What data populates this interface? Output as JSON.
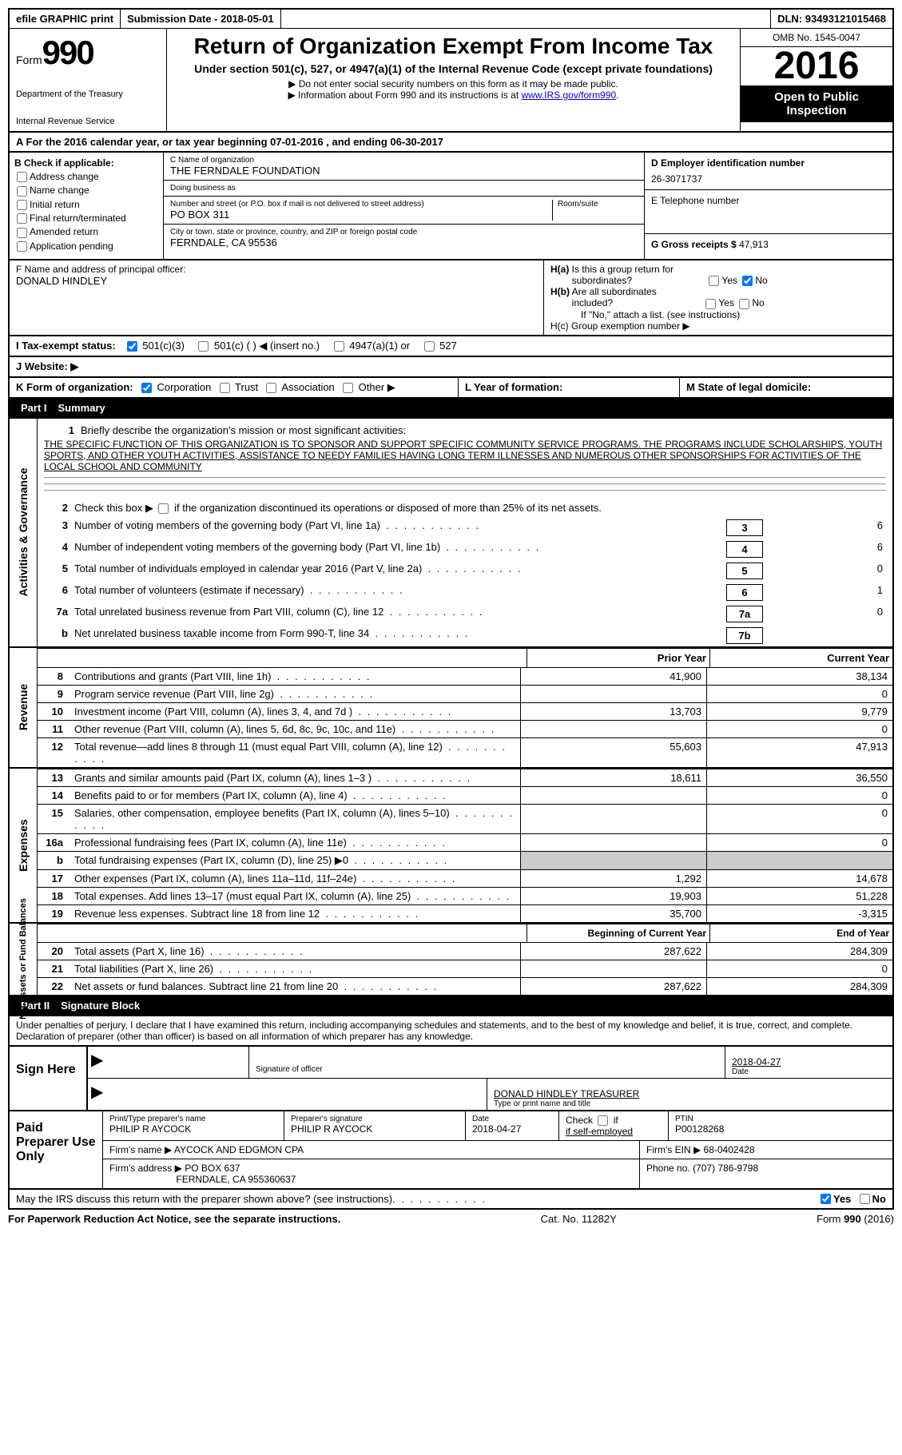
{
  "top": {
    "efile": "efile GRAPHIC print",
    "subdate_label": "Submission Date - ",
    "subdate": "2018-05-01",
    "dln_label": "DLN: ",
    "dln": "93493121015468"
  },
  "header": {
    "form_prefix": "Form",
    "form_no": "990",
    "dept1": "Department of the Treasury",
    "dept2": "Internal Revenue Service",
    "title": "Return of Organization Exempt From Income Tax",
    "sub": "Under section 501(c), 527, or 4947(a)(1) of the Internal Revenue Code (except private foundations)",
    "note1": "▶ Do not enter social security numbers on this form as it may be made public.",
    "note2": "▶ Information about Form 990 and its instructions is at ",
    "link": "www.IRS.gov/form990",
    "omb": "OMB No. 1545-0047",
    "year": "2016",
    "open": "Open to Public Inspection"
  },
  "a": {
    "text": "A  For the 2016 calendar year, or tax year beginning 07-01-2016   , and ending 06-30-2017"
  },
  "b": {
    "label": "B Check if applicable:",
    "items": [
      "Address change",
      "Name change",
      "Initial return",
      "Final return/terminated",
      "Amended return",
      "Application pending"
    ]
  },
  "c": {
    "name_label": "C Name of organization",
    "name": "THE FERNDALE FOUNDATION",
    "dba_label": "Doing business as",
    "dba": "",
    "street_label": "Number and street (or P.O. box if mail is not delivered to street address)",
    "room_label": "Room/suite",
    "street": "PO BOX 311",
    "city_label": "City or town, state or province, country, and ZIP or foreign postal code",
    "city": "FERNDALE, CA  95536"
  },
  "d": {
    "label": "D Employer identification number",
    "value": "26-3071737"
  },
  "e": {
    "label": "E Telephone number",
    "value": ""
  },
  "g": {
    "label": "G Gross receipts $ ",
    "value": "47,913"
  },
  "f": {
    "label": "F  Name and address of principal officer:",
    "name": "DONALD HINDLEY"
  },
  "h": {
    "ha": "H(a)  Is this a group return for subordinates?",
    "ha_no": true,
    "hb": "H(b)  Are all subordinates included?",
    "hb_note": "If \"No,\" attach a list. (see instructions)",
    "hc": "H(c)  Group exemption number ▶"
  },
  "i": {
    "label": "I  Tax-exempt status:",
    "opts": [
      "501(c)(3)",
      "501(c) (   ) ◀ (insert no.)",
      "4947(a)(1) or",
      "527"
    ]
  },
  "j": {
    "label": "J  Website: ▶"
  },
  "k": {
    "label": "K Form of organization:",
    "opts": [
      "Corporation",
      "Trust",
      "Association",
      "Other ▶"
    ]
  },
  "l": {
    "label": "L Year of formation:"
  },
  "m": {
    "label": "M State of legal domicile:"
  },
  "part1": {
    "header": "Part I",
    "title": "Summary"
  },
  "gov": {
    "side": "Activities & Governance",
    "l1": "Briefly describe the organization's mission or most significant activities:",
    "mission": "THE SPECIFIC FUNCTION OF THIS ORGANIZATION IS TO SPONSOR AND SUPPORT SPECIFIC COMMUNITY SERVICE PROGRAMS. THE PROGRAMS INCLUDE SCHOLARSHIPS, YOUTH SPORTS, AND OTHER YOUTH ACTIVITIES, ASSISTANCE TO NEEDY FAMILIES HAVING LONG TERM ILLNESSES AND NUMEROUS OTHER SPONSORSHIPS FOR ACTIVITIES OF THE LOCAL SCHOOL AND COMMUNITY",
    "l2": "Check this box ▶      if the organization discontinued its operations or disposed of more than 25% of its net assets.",
    "lines": [
      {
        "n": "3",
        "d": "Number of voting members of the governing body (Part VI, line 1a)",
        "box": "3",
        "v": "6"
      },
      {
        "n": "4",
        "d": "Number of independent voting members of the governing body (Part VI, line 1b)",
        "box": "4",
        "v": "6"
      },
      {
        "n": "5",
        "d": "Total number of individuals employed in calendar year 2016 (Part V, line 2a)",
        "box": "5",
        "v": "0"
      },
      {
        "n": "6",
        "d": "Total number of volunteers (estimate if necessary)",
        "box": "6",
        "v": "1"
      },
      {
        "n": "7a",
        "d": "Total unrelated business revenue from Part VIII, column (C), line 12",
        "box": "7a",
        "v": "0"
      },
      {
        "n": "b",
        "d": "Net unrelated business taxable income from Form 990-T, line 34",
        "box": "7b",
        "v": ""
      }
    ]
  },
  "cols": {
    "py": "Prior Year",
    "cy": "Current Year"
  },
  "rev": {
    "side": "Revenue",
    "rows": [
      {
        "n": "8",
        "d": "Contributions and grants (Part VIII, line 1h)",
        "p": "41,900",
        "c": "38,134"
      },
      {
        "n": "9",
        "d": "Program service revenue (Part VIII, line 2g)",
        "p": "",
        "c": "0"
      },
      {
        "n": "10",
        "d": "Investment income (Part VIII, column (A), lines 3, 4, and 7d )",
        "p": "13,703",
        "c": "9,779"
      },
      {
        "n": "11",
        "d": "Other revenue (Part VIII, column (A), lines 5, 6d, 8c, 9c, 10c, and 11e)",
        "p": "",
        "c": "0"
      },
      {
        "n": "12",
        "d": "Total revenue—add lines 8 through 11 (must equal Part VIII, column (A), line 12)",
        "p": "55,603",
        "c": "47,913"
      }
    ]
  },
  "exp": {
    "side": "Expenses",
    "rows": [
      {
        "n": "13",
        "d": "Grants and similar amounts paid (Part IX, column (A), lines 1–3 )",
        "p": "18,611",
        "c": "36,550"
      },
      {
        "n": "14",
        "d": "Benefits paid to or for members (Part IX, column (A), line 4)",
        "p": "",
        "c": "0"
      },
      {
        "n": "15",
        "d": "Salaries, other compensation, employee benefits (Part IX, column (A), lines 5–10)",
        "p": "",
        "c": "0"
      },
      {
        "n": "16a",
        "d": "Professional fundraising fees (Part IX, column (A), line 11e)",
        "p": "",
        "c": "0"
      },
      {
        "n": "b",
        "d": "Total fundraising expenses (Part IX, column (D), line 25) ▶0",
        "p": "grey",
        "c": "grey"
      },
      {
        "n": "17",
        "d": "Other expenses (Part IX, column (A), lines 11a–11d, 11f–24e)",
        "p": "1,292",
        "c": "14,678"
      },
      {
        "n": "18",
        "d": "Total expenses. Add lines 13–17 (must equal Part IX, column (A), line 25)",
        "p": "19,903",
        "c": "51,228"
      },
      {
        "n": "19",
        "d": "Revenue less expenses. Subtract line 18 from line 12",
        "p": "35,700",
        "c": "-3,315"
      }
    ]
  },
  "na": {
    "side": "Net Assets or Fund Balances",
    "py": "Beginning of Current Year",
    "cy": "End of Year",
    "rows": [
      {
        "n": "20",
        "d": "Total assets (Part X, line 16)",
        "p": "287,622",
        "c": "284,309"
      },
      {
        "n": "21",
        "d": "Total liabilities (Part X, line 26)",
        "p": "",
        "c": "0"
      },
      {
        "n": "22",
        "d": "Net assets or fund balances. Subtract line 21 from line 20",
        "p": "287,622",
        "c": "284,309"
      }
    ]
  },
  "part2": {
    "header": "Part II",
    "title": "Signature Block"
  },
  "sig": {
    "text": "Under penalties of perjury, I declare that I have examined this return, including accompanying schedules and statements, and to the best of my knowledge and belief, it is true, correct, and complete. Declaration of preparer (other than officer) is based on all information of which preparer has any knowledge.",
    "sign_here": "Sign Here",
    "sig_label": "Signature of officer",
    "date": "2018-04-27",
    "date_label": "Date",
    "name": "DONALD HINDLEY TREASURER",
    "name_label": "Type or print name and title"
  },
  "paid": {
    "label": "Paid Preparer Use Only",
    "p_name_label": "Print/Type preparer's name",
    "p_name": "PHILIP R AYCOCK",
    "p_sig_label": "Preparer's signature",
    "p_sig": "PHILIP R AYCOCK",
    "p_date_label": "Date",
    "p_date": "2018-04-27",
    "check_label": "Check",
    "check_sub": "if self-employed",
    "ptin_label": "PTIN",
    "ptin": "P00128268",
    "firm_name_label": "Firm's name    ▶ ",
    "firm_name": "AYCOCK AND EDGMON CPA",
    "firm_ein_label": "Firm's EIN ▶ ",
    "firm_ein": "68-0402428",
    "firm_addr_label": "Firm's address ▶ ",
    "firm_addr": "PO BOX 637",
    "firm_city": "FERNDALE, CA  955360637",
    "phone_label": "Phone no. ",
    "phone": "(707) 786-9798"
  },
  "discuss": {
    "text": "May the IRS discuss this return with the preparer shown above? (see instructions)",
    "yes": "Yes",
    "no": "No"
  },
  "footer": {
    "left": "For Paperwork Reduction Act Notice, see the separate instructions.",
    "mid": "Cat. No. 11282Y",
    "right": "Form 990 (2016)"
  }
}
